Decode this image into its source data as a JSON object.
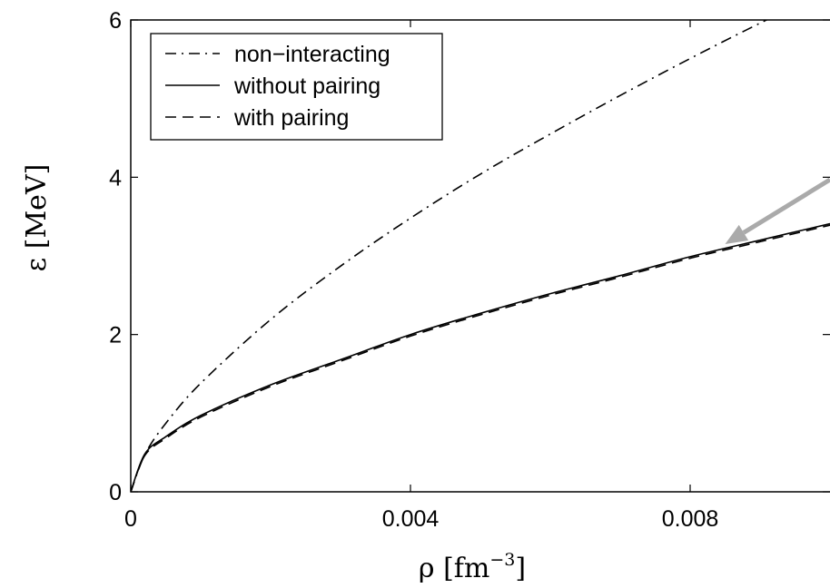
{
  "chart_data": {
    "type": "line",
    "title": "",
    "xlabel": "ρ [fm⁻³]",
    "xlabel_base": "ρ [fm",
    "xlabel_sup": "−3",
    "xlabel_close": "]",
    "ylabel": "ε [MeV]",
    "xlim": [
      0,
      0.01
    ],
    "ylim": [
      0,
      6
    ],
    "xticks": [
      0,
      0.004,
      0.008
    ],
    "xtick_labels": [
      "0",
      "0.004",
      "0.008"
    ],
    "yticks": [
      0,
      2,
      4,
      6
    ],
    "ytick_labels": [
      "0",
      "2",
      "4",
      "6"
    ],
    "grid": false,
    "legend_position": "top-left",
    "x": [
      0,
      0.0002,
      0.0005,
      0.001,
      0.002,
      0.003,
      0.004,
      0.005,
      0.006,
      0.007,
      0.008,
      0.009,
      0.01
    ],
    "series": [
      {
        "name": "non−interacting",
        "line_style": "dash-dot",
        "color": "#000000",
        "values": [
          0,
          0.47,
          0.87,
          1.38,
          2.19,
          2.87,
          3.48,
          4.04,
          4.55,
          5.04,
          5.51,
          5.96,
          6.39
        ]
      },
      {
        "name": "without pairing",
        "line_style": "solid",
        "color": "#000000",
        "values": [
          0,
          0.48,
          0.7,
          0.97,
          1.36,
          1.68,
          2.0,
          2.27,
          2.52,
          2.75,
          2.99,
          3.2,
          3.41
        ]
      },
      {
        "name": "with pairing",
        "line_style": "dashed",
        "color": "#000000",
        "values": [
          0,
          0.46,
          0.68,
          0.95,
          1.34,
          1.66,
          1.98,
          2.25,
          2.5,
          2.73,
          2.97,
          3.18,
          3.39
        ]
      }
    ],
    "annotation": {
      "type": "arrow",
      "color": "#aaaaaa",
      "points_to_x": 0.0085,
      "points_to_y": 3.15
    }
  }
}
